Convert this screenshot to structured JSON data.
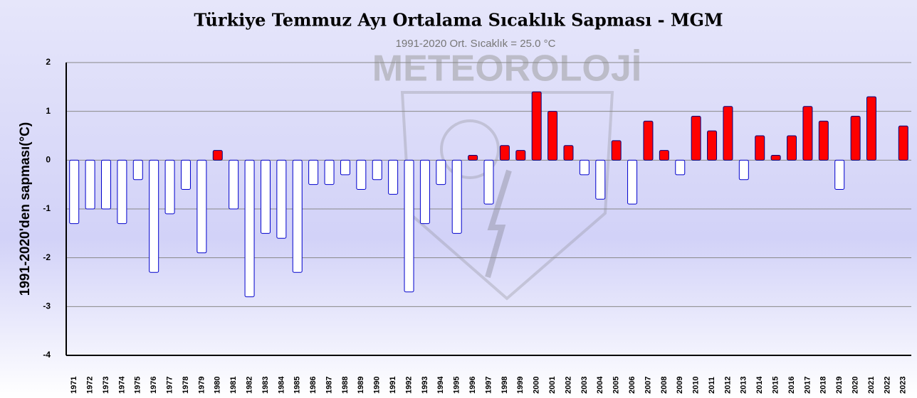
{
  "chart_data": {
    "type": "bar",
    "title": "Türkiye Temmuz Ayı Ortalama Sıcaklık Sapması - MGM",
    "subtitle": "1991-2020 Ort. Sıcaklık = 25.0 °C",
    "watermark": "METEOROLOJİ",
    "y_label": "1991-2020'den sapması(°C)",
    "categories": [
      "1971",
      "1972",
      "1973",
      "1974",
      "1975",
      "1976",
      "1977",
      "1978",
      "1979",
      "1980",
      "1981",
      "1982",
      "1983",
      "1984",
      "1985",
      "1986",
      "1987",
      "1988",
      "1989",
      "1990",
      "1991",
      "1992",
      "1993",
      "1994",
      "1995",
      "1996",
      "1997",
      "1998",
      "1999",
      "2000",
      "2001",
      "2002",
      "2003",
      "2004",
      "2005",
      "2006",
      "2007",
      "2008",
      "2009",
      "2010",
      "2011",
      "2012",
      "2013",
      "2014",
      "2015",
      "2016",
      "2017",
      "2018",
      "2019",
      "2020",
      "2021",
      "2022",
      "2023"
    ],
    "values": [
      -1.3,
      -1.0,
      -1.0,
      -1.3,
      -0.4,
      -2.3,
      -1.1,
      -0.6,
      -1.9,
      0.2,
      -1.0,
      -2.8,
      -1.5,
      -1.6,
      -2.3,
      -0.5,
      -0.5,
      -0.3,
      -0.6,
      -0.4,
      -0.7,
      -2.7,
      -1.3,
      -0.5,
      -1.5,
      0.1,
      -0.9,
      0.3,
      0.2,
      1.4,
      1.0,
      0.3,
      -0.3,
      -0.8,
      0.4,
      -0.9,
      0.8,
      0.2,
      -0.3,
      0.9,
      0.6,
      1.1,
      -0.4,
      0.5,
      0.1,
      0.5,
      1.1,
      0.8,
      -0.6,
      0.9,
      1.3,
      0.0,
      0.7
    ],
    "positive_color": "#ff0000",
    "negative_color": "#ffffff",
    "ylim": [
      -4,
      2
    ],
    "yticks": [
      2,
      1,
      0,
      -1,
      -2,
      -3,
      -4
    ],
    "grid": true
  }
}
